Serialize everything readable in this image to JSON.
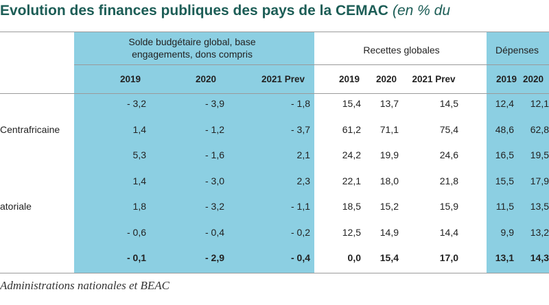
{
  "title": {
    "main": "Evolution des finances publiques des pays de la CEMAC",
    "sub": "(en % du"
  },
  "groups": {
    "solde": "Solde budgétaire global, base engagements, dons compris",
    "recettes": "Recettes globales",
    "depenses": "Dépenses"
  },
  "years": {
    "solde": [
      "2019",
      "2020",
      "2021 Prev"
    ],
    "recettes": [
      "2019",
      "2020",
      "2021 Prev"
    ],
    "depenses": [
      "2019",
      "2020"
    ]
  },
  "rows": [
    {
      "label": "",
      "solde": [
        "- 3,2",
        "- 3,9",
        "- 1,8"
      ],
      "recettes": [
        "15,4",
        "13,7",
        "14,5"
      ],
      "depenses": [
        "12,4",
        "12,1"
      ]
    },
    {
      "label": "Centrafricaine",
      "solde": [
        "1,4",
        "- 1,2",
        "- 3,7"
      ],
      "recettes": [
        "61,2",
        "71,1",
        "75,4"
      ],
      "depenses": [
        "48,6",
        "62,8"
      ]
    },
    {
      "label": "",
      "solde": [
        "5,3",
        "- 1,6",
        "2,1"
      ],
      "recettes": [
        "24,2",
        "19,9",
        "24,6"
      ],
      "depenses": [
        "16,5",
        "19,5"
      ]
    },
    {
      "label": "",
      "solde": [
        "1,4",
        "- 3,0",
        "2,3"
      ],
      "recettes": [
        "22,1",
        "18,0",
        "21,8"
      ],
      "depenses": [
        "15,5",
        "17,9"
      ]
    },
    {
      "label": "atoriale",
      "solde": [
        "1,8",
        "- 3,2",
        "- 1,1"
      ],
      "recettes": [
        "18,5",
        "15,2",
        "15,9"
      ],
      "depenses": [
        "11,5",
        "13,5"
      ]
    },
    {
      "label": "",
      "solde": [
        "- 0,6",
        "- 0,4",
        "- 0,2"
      ],
      "recettes": [
        "12,5",
        "14,9",
        "14,4"
      ],
      "depenses": [
        "9,9",
        "13,2"
      ]
    },
    {
      "label": "",
      "solde": [
        "- 0,1",
        "- 2,9",
        "- 0,4"
      ],
      "recettes": [
        "0,0",
        "15,4",
        "17,0"
      ],
      "depenses": [
        "13,1",
        "14,3"
      ],
      "total": true
    }
  ],
  "source": "Administrations nationales et BEAC",
  "colors": {
    "accent_blue": "#8ccfe2",
    "title_green": "#1c5d56"
  }
}
